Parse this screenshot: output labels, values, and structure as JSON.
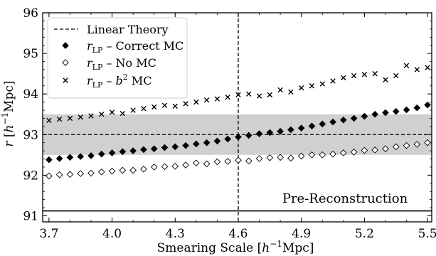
{
  "chart_data": {
    "type": "scatter",
    "xlabel": {
      "pre": "Smearing Scale [",
      "italic": "h",
      "sup": "−1",
      "post": "Mpc]"
    },
    "ylabel": {
      "italic_r": "r",
      "open": " [",
      "italic_h": "h",
      "sup": "−1",
      "post": "Mpc]"
    },
    "xlim": [
      3.67,
      5.52
    ],
    "ylim": [
      90.85,
      96.0
    ],
    "xticks": [
      3.7,
      4.0,
      4.3,
      4.6,
      4.9,
      5.2,
      5.5
    ],
    "xtick_labels": [
      "3.7",
      "4.0",
      "4.3",
      "4.6",
      "4.9",
      "5.2",
      "5.5"
    ],
    "yticks": [
      91,
      92,
      93,
      94,
      95,
      96
    ],
    "ytick_labels": [
      "91",
      "92",
      "93",
      "94",
      "95",
      "96"
    ],
    "grid": false,
    "legend_placement": "top-left",
    "annotation": "Pre-Reconstruction",
    "linear_theory": {
      "y": 93.0,
      "band": [
        92.5,
        93.5
      ],
      "vline_x": 4.6
    },
    "pre_reconstruction_y": 91.12,
    "legend": [
      {
        "key": "linear",
        "sym": "",
        "label": "Linear Theory"
      },
      {
        "key": "correct",
        "sym": "r",
        "sub": "LP",
        "rest": " – Correct MC"
      },
      {
        "key": "nomc",
        "sym": "r",
        "sub": "LP",
        "rest": " – No MC"
      },
      {
        "key": "b2",
        "sym": "r",
        "sub": "LP",
        "mid": " – ",
        "b": "b",
        "bsup": "2",
        "rest": " MC"
      }
    ],
    "series": [
      {
        "name": "rLP – Correct MC",
        "x": [
          3.7,
          3.75,
          3.8,
          3.85,
          3.9,
          3.95,
          4.0,
          4.05,
          4.1,
          4.15,
          4.2,
          4.25,
          4.3,
          4.35,
          4.4,
          4.45,
          4.5,
          4.55,
          4.6,
          4.65,
          4.7,
          4.75,
          4.8,
          4.85,
          4.9,
          4.95,
          5.0,
          5.05,
          5.1,
          5.15,
          5.2,
          5.25,
          5.3,
          5.35,
          5.4,
          5.45,
          5.5
        ],
        "y": [
          92.38,
          92.41,
          92.44,
          92.46,
          92.48,
          92.52,
          92.55,
          92.58,
          92.6,
          92.63,
          92.65,
          92.68,
          92.7,
          92.73,
          92.77,
          92.8,
          92.84,
          92.89,
          92.94,
          92.98,
          93.02,
          93.05,
          93.08,
          93.12,
          93.16,
          93.21,
          93.26,
          93.31,
          93.36,
          93.4,
          93.45,
          93.5,
          93.54,
          93.57,
          93.61,
          93.66,
          93.73
        ]
      },
      {
        "name": "rLP – No MC",
        "x": [
          3.7,
          3.75,
          3.8,
          3.85,
          3.9,
          3.95,
          4.0,
          4.05,
          4.1,
          4.15,
          4.2,
          4.25,
          4.3,
          4.35,
          4.4,
          4.45,
          4.5,
          4.55,
          4.6,
          4.65,
          4.7,
          4.75,
          4.8,
          4.85,
          4.9,
          4.95,
          5.0,
          5.05,
          5.1,
          5.15,
          5.2,
          5.25,
          5.3,
          5.35,
          5.4,
          5.45,
          5.5
        ],
        "y": [
          91.98,
          92.01,
          92.02,
          92.04,
          92.05,
          92.08,
          92.1,
          92.12,
          92.12,
          92.15,
          92.2,
          92.21,
          92.22,
          92.25,
          92.3,
          92.28,
          92.33,
          92.34,
          92.37,
          92.35,
          92.41,
          92.43,
          92.44,
          92.42,
          92.47,
          92.5,
          92.5,
          92.52,
          92.55,
          92.57,
          92.61,
          92.62,
          92.65,
          92.7,
          92.73,
          92.76,
          92.8
        ]
      },
      {
        "name": "rLP – b2 MC",
        "x": [
          3.7,
          3.75,
          3.8,
          3.85,
          3.9,
          3.95,
          4.0,
          4.05,
          4.1,
          4.15,
          4.2,
          4.25,
          4.3,
          4.35,
          4.4,
          4.45,
          4.5,
          4.55,
          4.6,
          4.65,
          4.7,
          4.75,
          4.8,
          4.85,
          4.9,
          4.95,
          5.0,
          5.05,
          5.1,
          5.15,
          5.2,
          5.25,
          5.3,
          5.35,
          5.4,
          5.45,
          5.5
        ],
        "y": [
          93.35,
          93.38,
          93.4,
          93.43,
          93.46,
          93.5,
          93.55,
          93.52,
          93.6,
          93.64,
          93.68,
          93.72,
          93.7,
          93.76,
          93.8,
          93.85,
          93.88,
          93.92,
          93.98,
          94.0,
          93.95,
          93.98,
          94.1,
          94.05,
          94.15,
          94.2,
          94.25,
          94.32,
          94.4,
          94.45,
          94.48,
          94.5,
          94.35,
          94.45,
          94.7,
          94.6,
          94.65
        ]
      }
    ]
  }
}
